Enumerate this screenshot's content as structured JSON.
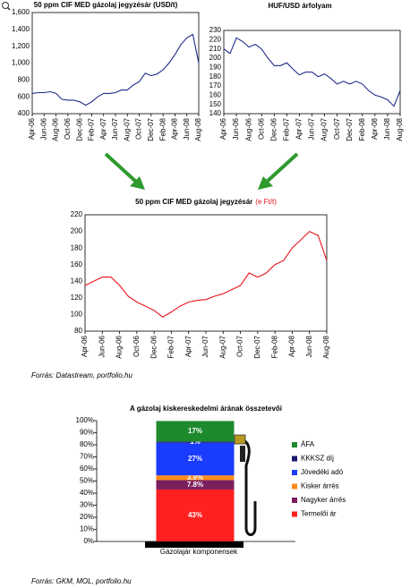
{
  "chart_data": [
    {
      "type": "line",
      "title": "50 ppm CIF MED gázolaj jegyzésár (USD/t)",
      "categories": [
        "Apr-06",
        null,
        "Jun-06",
        null,
        "Aug-06",
        null,
        "Oct-06",
        null,
        "Dec-06",
        null,
        "Feb-07",
        null,
        "Apr-07",
        null,
        "Jun-07",
        null,
        "Aug-07",
        null,
        "Oct-07",
        null,
        "Dec-07",
        null,
        "Feb-08",
        null,
        "Apr-08",
        null,
        "Jun-08",
        null,
        "Aug-08"
      ],
      "series": [
        {
          "color": "#1f2a8a",
          "values": [
            640,
            650,
            650,
            660,
            640,
            570,
            560,
            560,
            540,
            500,
            540,
            600,
            640,
            640,
            650,
            680,
            680,
            740,
            780,
            880,
            850,
            870,
            920,
            1000,
            1100,
            1220,
            1300,
            1340,
            1000
          ]
        }
      ],
      "ylim": [
        400,
        1600
      ],
      "yticks": [
        400,
        600,
        800,
        {
          "value": 1000,
          "label": "1,000"
        },
        {
          "value": 1200,
          "label": "1,200"
        },
        {
          "value": 1400,
          "label": "1,400"
        },
        {
          "value": 1600,
          "label": "1,600"
        }
      ],
      "grid": true
    },
    {
      "type": "line",
      "title": "HUF/USD árfolyam",
      "categories": [
        "Apr-06",
        null,
        "Jun-06",
        null,
        "Aug-06",
        null,
        "Oct-06",
        null,
        "Dec-06",
        null,
        "Feb-07",
        null,
        "Apr-07",
        null,
        "Jun-07",
        null,
        "Aug-07",
        null,
        "Oct-07",
        null,
        "Dec-07",
        null,
        "Feb-08",
        null,
        "Apr-08",
        null,
        "Jun-08",
        null,
        "Aug-08"
      ],
      "series": [
        {
          "color": "#1f2a8a",
          "values": [
            210,
            205,
            222,
            218,
            212,
            215,
            210,
            200,
            192,
            192,
            195,
            188,
            182,
            185,
            185,
            180,
            183,
            178,
            172,
            175,
            172,
            175,
            172,
            165,
            160,
            158,
            155,
            148,
            165
          ]
        }
      ],
      "ylim": [
        140,
        230
      ],
      "yticks": [
        140,
        150,
        160,
        170,
        180,
        190,
        200,
        210,
        220,
        230
      ],
      "grid": true
    },
    {
      "type": "line",
      "title": "50 ppm CIF MED gázolaj jegyzésár",
      "title_unit": "(e Ft/t)",
      "categories": [
        "Apr-06",
        null,
        "Jun-06",
        null,
        "Aug-06",
        null,
        "Oct-06",
        null,
        "Dec-06",
        null,
        "Feb-07",
        null,
        "Apr-07",
        null,
        "Jun-07",
        null,
        "Aug-07",
        null,
        "Oct-07",
        null,
        "Dec-07",
        null,
        "Feb-08",
        null,
        "Apr-08",
        null,
        "Jun-08",
        null,
        "Aug-08"
      ],
      "series": [
        {
          "color": "#e8141b",
          "values": [
            135,
            140,
            145,
            145,
            135,
            122,
            115,
            110,
            105,
            97,
            103,
            110,
            115,
            117,
            118,
            122,
            125,
            130,
            135,
            150,
            145,
            150,
            160,
            165,
            180,
            190,
            200,
            195,
            165
          ]
        }
      ],
      "ylim": [
        80,
        220
      ],
      "yticks": [
        80,
        100,
        120,
        140,
        160,
        180,
        200,
        220
      ],
      "grid": true,
      "source": "Forrás: Datastream, portfolio.hu"
    },
    {
      "type": "stacked-bar",
      "title": "A gázolaj kiskereskedelmi árának összetevői",
      "categories": [
        "Gázolajár komponensek"
      ],
      "series": [
        {
          "name": "Termelői ár",
          "color": "#ff2020",
          "values": [
            43
          ],
          "value_labels": [
            "43%"
          ]
        },
        {
          "name": "Nagyker árrés",
          "color": "#7a1f5e",
          "values": [
            7.8
          ],
          "value_labels": [
            "7.8%"
          ]
        },
        {
          "name": "Kisker árrés",
          "color": "#ff8a1a",
          "values": [
            3.9
          ],
          "value_labels": [
            "3.9%"
          ]
        },
        {
          "name": "Jövedéki adó",
          "color": "#1a3cff",
          "values": [
            27
          ],
          "value_labels": [
            "27%"
          ]
        },
        {
          "name": "KKKSZ díj",
          "color": "#1a1a6e",
          "values": [
            1
          ],
          "value_labels": [
            "1%"
          ]
        },
        {
          "name": "ÁFA",
          "color": "#1e8a2e",
          "values": [
            17
          ],
          "value_labels": [
            "17%"
          ]
        }
      ],
      "ylim": [
        0,
        100
      ],
      "yticks": [
        {
          "value": 0,
          "label": "0%"
        },
        {
          "value": 10,
          "label": "10%"
        },
        {
          "value": 20,
          "label": "20%"
        },
        {
          "value": 30,
          "label": "30%"
        },
        {
          "value": 40,
          "label": "40%"
        },
        {
          "value": 50,
          "label": "50%"
        },
        {
          "value": 60,
          "label": "60%"
        },
        {
          "value": 70,
          "label": "70%"
        },
        {
          "value": 80,
          "label": "80%"
        },
        {
          "value": 90,
          "label": "90%"
        },
        {
          "value": 100,
          "label": "100%"
        }
      ],
      "grid": false,
      "source": "Forrás: GKM, MOL, portfolio.hu"
    }
  ]
}
